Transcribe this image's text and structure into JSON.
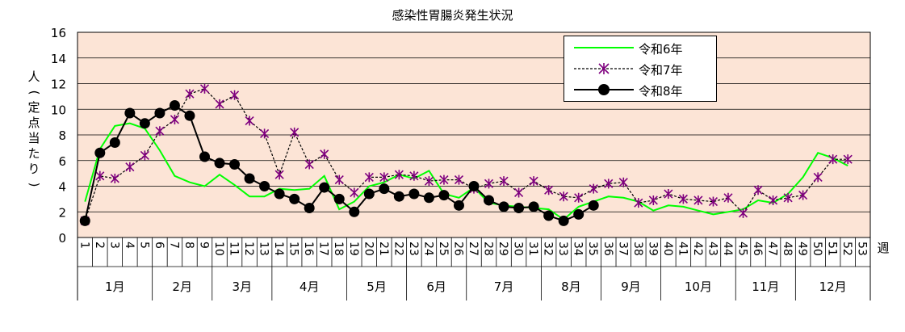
{
  "chart_data": {
    "type": "line",
    "title": "感染性胃腸炎発生状況",
    "ylabel": "人（定点当たり）",
    "xlabel": "週",
    "ylim": [
      0,
      16
    ],
    "yticks": [
      0,
      2,
      4,
      6,
      8,
      10,
      12,
      14,
      16
    ],
    "grid": true,
    "legend_position": "top-right",
    "plot_background": "#fce4d6",
    "x": [
      1,
      2,
      3,
      4,
      5,
      6,
      7,
      8,
      9,
      10,
      11,
      12,
      13,
      14,
      15,
      16,
      17,
      18,
      19,
      20,
      21,
      22,
      23,
      24,
      25,
      26,
      27,
      28,
      29,
      30,
      31,
      32,
      33,
      34,
      35,
      36,
      37,
      38,
      39,
      40,
      41,
      42,
      43,
      44,
      45,
      46,
      47,
      48,
      49,
      50,
      51,
      52,
      53
    ],
    "months": [
      {
        "label": "1月",
        "start": 1,
        "end": 5
      },
      {
        "label": "2月",
        "start": 6,
        "end": 9
      },
      {
        "label": "3月",
        "start": 10,
        "end": 13
      },
      {
        "label": "4月",
        "start": 14,
        "end": 18
      },
      {
        "label": "5月",
        "start": 19,
        "end": 22
      },
      {
        "label": "6月",
        "start": 23,
        "end": 26
      },
      {
        "label": "7月",
        "start": 27,
        "end": 31
      },
      {
        "label": "8月",
        "start": 32,
        "end": 35
      },
      {
        "label": "9月",
        "start": 36,
        "end": 39
      },
      {
        "label": "10月",
        "start": 40,
        "end": 44
      },
      {
        "label": "11月",
        "start": 45,
        "end": 48
      },
      {
        "label": "12月",
        "start": 49,
        "end": 53
      }
    ],
    "series": [
      {
        "name": "令和6年",
        "color": "#00ff00",
        "style": "solid",
        "values": [
          2.8,
          6.9,
          8.7,
          8.9,
          8.5,
          6.8,
          4.8,
          4.3,
          4.0,
          4.9,
          4.1,
          3.2,
          3.2,
          3.8,
          3.7,
          3.8,
          4.8,
          2.2,
          2.8,
          4.0,
          4.3,
          4.9,
          4.6,
          5.2,
          3.4,
          3.1,
          3.9,
          2.7,
          2.5,
          2.4,
          2.3,
          2.2,
          1.4,
          2.4,
          2.8,
          3.2,
          3.1,
          2.8,
          2.1,
          2.5,
          2.4,
          2.1,
          1.8,
          2.0,
          2.2,
          2.9,
          2.7,
          3.4,
          4.7,
          6.6,
          6.2,
          5.6,
          null
        ]
      },
      {
        "name": "令和7年",
        "color": "#7f007f",
        "style": "dashed",
        "marker": "asterisk",
        "values": [
          1.3,
          4.8,
          4.6,
          5.5,
          6.4,
          8.3,
          9.2,
          11.2,
          11.6,
          10.4,
          11.1,
          9.1,
          8.1,
          4.9,
          8.2,
          5.7,
          6.5,
          4.5,
          3.5,
          4.7,
          4.7,
          4.9,
          4.8,
          4.4,
          4.5,
          4.5,
          3.8,
          4.2,
          4.4,
          3.5,
          4.4,
          3.7,
          3.2,
          3.1,
          3.8,
          4.2,
          4.3,
          2.7,
          2.9,
          3.4,
          3.0,
          2.9,
          2.8,
          3.1,
          1.9,
          3.7,
          2.9,
          3.1,
          3.3,
          4.7,
          6.1,
          6.1,
          null
        ]
      },
      {
        "name": "令和8年",
        "color": "#000000",
        "style": "solid",
        "marker": "circle",
        "values": [
          1.3,
          6.6,
          7.4,
          9.7,
          8.9,
          9.7,
          10.3,
          9.5,
          6.3,
          5.8,
          5.7,
          4.6,
          4.0,
          3.4,
          3.0,
          2.3,
          3.9,
          3.0,
          2.0,
          3.4,
          3.8,
          3.2,
          3.4,
          3.1,
          3.3,
          2.5,
          4.0,
          2.9,
          2.4,
          2.3,
          2.4,
          1.7,
          1.3,
          1.8,
          2.5,
          null,
          null,
          null,
          null,
          null,
          null,
          null,
          null,
          null,
          null,
          null,
          null,
          null,
          null,
          null,
          null,
          null,
          null
        ]
      }
    ]
  }
}
